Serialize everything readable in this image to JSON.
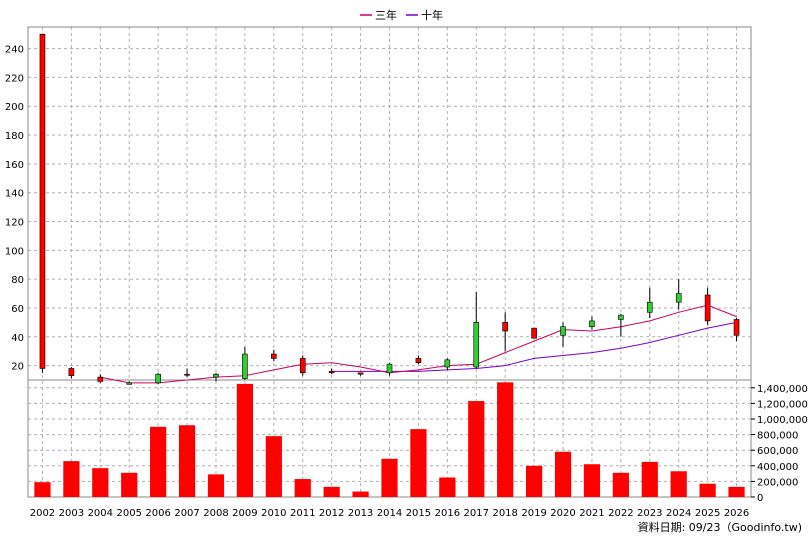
{
  "chart_data": {
    "type": "candlestick-volume",
    "legend": [
      {
        "name": "三年",
        "color": "#cc0066"
      },
      {
        "name": "十年",
        "color": "#7700cc"
      }
    ],
    "years": [
      "2002",
      "2003",
      "2004",
      "2005",
      "2006",
      "2007",
      "2008",
      "2009",
      "2010",
      "2011",
      "2012",
      "2013",
      "2014",
      "2015",
      "2016",
      "2017",
      "2018",
      "2019",
      "2020",
      "2021",
      "2022",
      "2023",
      "2024",
      "2025",
      "2026"
    ],
    "price_axis": {
      "min": 10,
      "max": 255,
      "ticks": [
        20,
        40,
        60,
        80,
        100,
        120,
        140,
        160,
        180,
        200,
        220,
        240
      ]
    },
    "volume_axis": {
      "min": 0,
      "max": 1500000,
      "ticks": [
        0,
        200000,
        400000,
        600000,
        800000,
        1000000,
        1200000,
        1400000
      ],
      "tick_labels": [
        "0",
        "200,000",
        "400,000",
        "600,000",
        "800,000",
        "1,000,000",
        "1,200,000",
        "1,400,000"
      ]
    },
    "candles": [
      {
        "year": "2002",
        "open": 18,
        "high": 250,
        "low": 15,
        "close": 250
      },
      {
        "year": "2003",
        "open": 13,
        "high": 19,
        "low": 11,
        "close": 18
      },
      {
        "year": "2004",
        "open": 9,
        "high": 14,
        "low": 8,
        "close": 12
      },
      {
        "year": "2005",
        "open": 8,
        "high": 9,
        "low": 7,
        "close": 7
      },
      {
        "year": "2006",
        "open": 14,
        "high": 15,
        "low": 7,
        "close": 8
      },
      {
        "year": "2007",
        "open": 14,
        "high": 18,
        "low": 12,
        "close": 14
      },
      {
        "year": "2008",
        "open": 14,
        "high": 15,
        "low": 9,
        "close": 12
      },
      {
        "year": "2009",
        "open": 28,
        "high": 33,
        "low": 10,
        "close": 11
      },
      {
        "year": "2010",
        "open": 25,
        "high": 31,
        "low": 23,
        "close": 28
      },
      {
        "year": "2011",
        "open": 15,
        "high": 27,
        "low": 13,
        "close": 25
      },
      {
        "year": "2012",
        "open": 15,
        "high": 18,
        "low": 14,
        "close": 16
      },
      {
        "year": "2013",
        "open": 14,
        "high": 15,
        "low": 13,
        "close": 15
      },
      {
        "year": "2014",
        "open": 21,
        "high": 22,
        "low": 13,
        "close": 15
      },
      {
        "year": "2015",
        "open": 22,
        "high": 27,
        "low": 21,
        "close": 25
      },
      {
        "year": "2016",
        "open": 24,
        "high": 25,
        "low": 17,
        "close": 19
      },
      {
        "year": "2017",
        "open": 50,
        "high": 71,
        "low": 18,
        "close": 19
      },
      {
        "year": "2018",
        "open": 44,
        "high": 57,
        "low": 30,
        "close": 50
      },
      {
        "year": "2019",
        "open": 39,
        "high": 46,
        "low": 39,
        "close": 46
      },
      {
        "year": "2020",
        "open": 47,
        "high": 50,
        "low": 33,
        "close": 41
      },
      {
        "year": "2021",
        "open": 51,
        "high": 54,
        "low": 45,
        "close": 47
      },
      {
        "year": "2022",
        "open": 55,
        "high": 56,
        "low": 40,
        "close": 52
      },
      {
        "year": "2023",
        "open": 64,
        "high": 74,
        "low": 53,
        "close": 57
      },
      {
        "year": "2024",
        "open": 70,
        "high": 80,
        "low": 59,
        "close": 64
      },
      {
        "year": "2025",
        "open": 51,
        "high": 74,
        "low": 48,
        "close": 69
      },
      {
        "year": "2026",
        "open": 41,
        "high": 53,
        "low": 37,
        "close": 52
      }
    ],
    "ma3": [
      null,
      null,
      12,
      8,
      8,
      10,
      12,
      13,
      17,
      21,
      22,
      19,
      15,
      17,
      20,
      21,
      29,
      37,
      45,
      44,
      47,
      51,
      57,
      62,
      54
    ],
    "ma10": [
      null,
      null,
      null,
      null,
      null,
      null,
      null,
      null,
      null,
      null,
      16,
      16,
      16,
      16,
      17,
      18,
      20,
      25,
      27,
      29,
      32,
      36,
      41,
      46,
      50
    ],
    "volumes": [
      190000,
      460000,
      370000,
      310000,
      900000,
      920000,
      290000,
      1450000,
      780000,
      230000,
      130000,
      70000,
      490000,
      870000,
      250000,
      1230000,
      1470000,
      400000,
      580000,
      420000,
      310000,
      450000,
      330000,
      170000,
      130000
    ],
    "bar_color": "#ff0000",
    "up_color": "#ff0000",
    "down_color": "#33cc33",
    "footer": "資料日期: 09/23（Goodinfo.tw)"
  }
}
